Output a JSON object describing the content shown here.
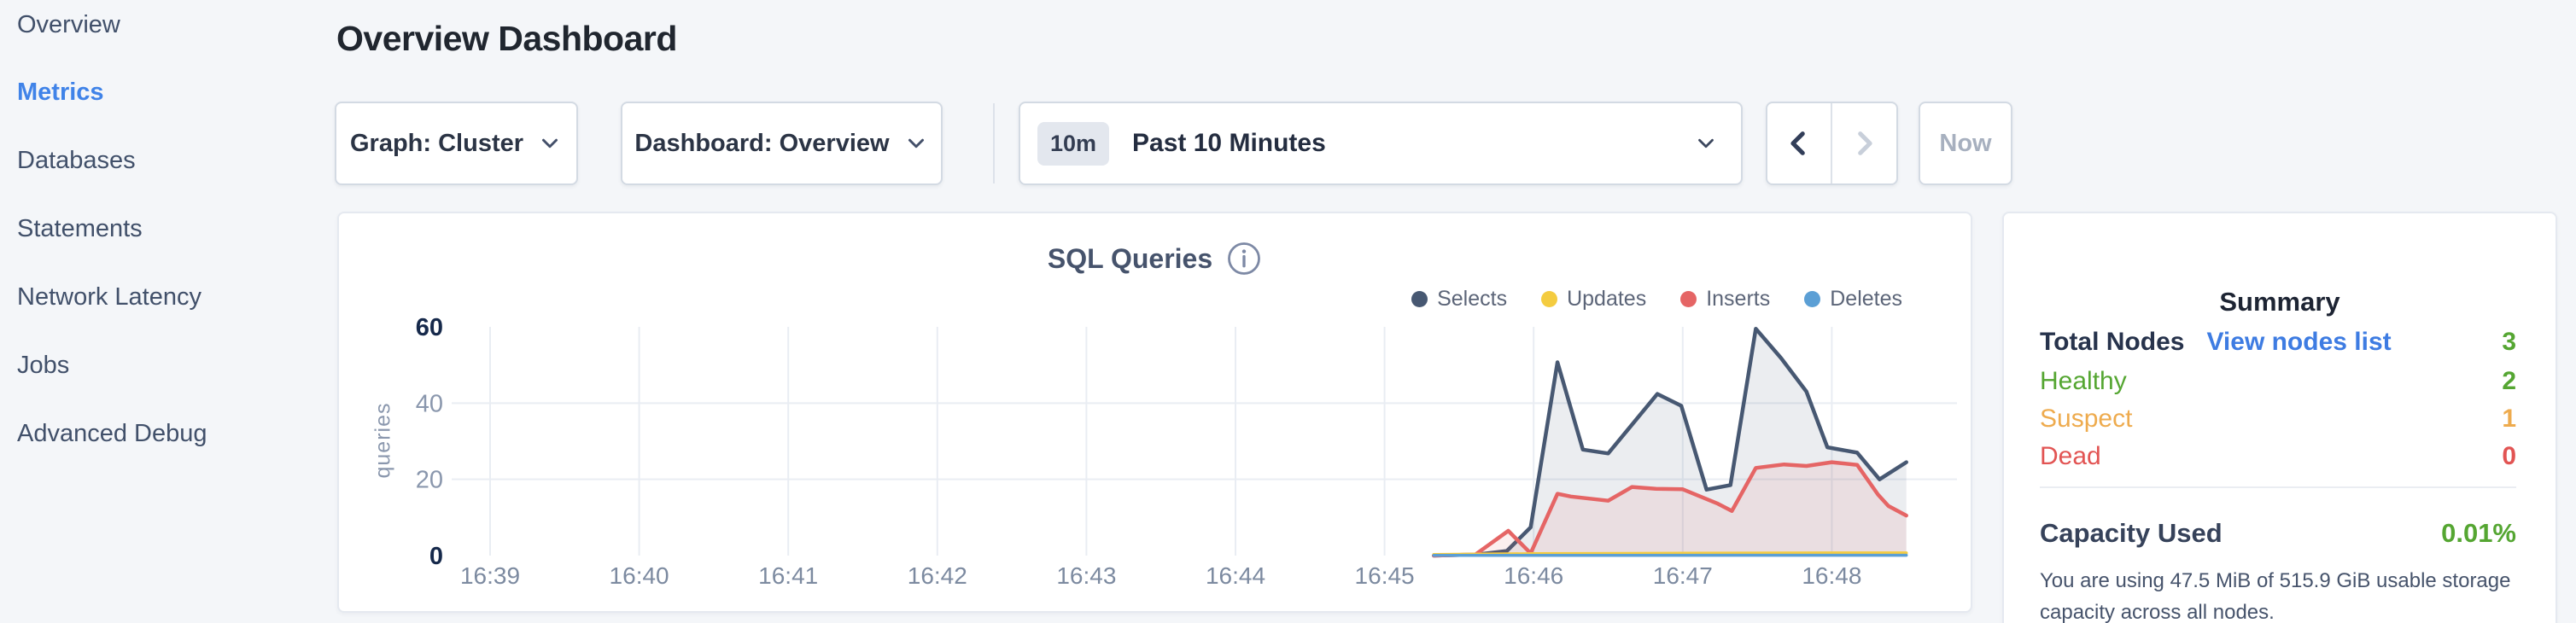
{
  "sidebar": {
    "items": [
      {
        "label": "Overview"
      },
      {
        "label": "Metrics"
      },
      {
        "label": "Databases"
      },
      {
        "label": "Statements"
      },
      {
        "label": "Network Latency"
      },
      {
        "label": "Jobs"
      },
      {
        "label": "Advanced Debug"
      }
    ],
    "active_index": 1,
    "active_color": "#4083e8"
  },
  "header": {
    "title": "Overview Dashboard"
  },
  "toolbar": {
    "graph_dropdown": {
      "label": "Graph: Cluster"
    },
    "dashboard_dropdown": {
      "label": "Dashboard: Overview"
    },
    "time_picker": {
      "badge": "10m",
      "label": "Past 10 Minutes"
    },
    "now_label": "Now"
  },
  "chart_data": {
    "type": "area",
    "title": "SQL Queries",
    "ylabel": "queries",
    "xlabel": "",
    "x_ticks": [
      "16:39",
      "16:40",
      "16:41",
      "16:42",
      "16:43",
      "16:44",
      "16:45",
      "16:46",
      "16:47",
      "16:48"
    ],
    "y_ticks": [
      0,
      20,
      40,
      60
    ],
    "y_gridlines": [
      20,
      40
    ],
    "ylim": [
      0,
      60
    ],
    "x_range_minutes": [
      0,
      9.85
    ],
    "grid": true,
    "legend_position": "top-right",
    "series": [
      {
        "name": "Selects",
        "color": "#475872",
        "fill": "rgba(71,88,114,0.11)",
        "width": 4.5,
        "points": [
          [
            6.33,
            0
          ],
          [
            6.62,
            0.3
          ],
          [
            6.82,
            1.2
          ],
          [
            6.98,
            7.4
          ],
          [
            7.16,
            50.7
          ],
          [
            7.33,
            27.8
          ],
          [
            7.5,
            26.8
          ],
          [
            7.83,
            42.4
          ],
          [
            7.99,
            39.3
          ],
          [
            8.16,
            17.3
          ],
          [
            8.32,
            18.5
          ],
          [
            8.49,
            59.5
          ],
          [
            8.66,
            51.8
          ],
          [
            8.83,
            43
          ],
          [
            8.97,
            28.4
          ],
          [
            9.17,
            27
          ],
          [
            9.32,
            20
          ],
          [
            9.5,
            24.5
          ]
        ]
      },
      {
        "name": "Updates",
        "color": "#f4cc40",
        "width": 3.5,
        "points": [
          [
            6.33,
            0.3
          ],
          [
            7.0,
            0.5
          ],
          [
            8.0,
            0.6
          ],
          [
            9.0,
            0.7
          ],
          [
            9.5,
            0.7
          ]
        ]
      },
      {
        "name": "Inserts",
        "color": "#e56565",
        "fill": "rgba(229,101,101,0.10)",
        "width": 4.5,
        "points": [
          [
            6.33,
            0
          ],
          [
            6.61,
            0.3
          ],
          [
            6.83,
            6.5
          ],
          [
            6.98,
            0.6
          ],
          [
            7.16,
            16.2
          ],
          [
            7.25,
            15.5
          ],
          [
            7.5,
            14.4
          ],
          [
            7.66,
            18
          ],
          [
            7.82,
            17.5
          ],
          [
            8.0,
            17.4
          ],
          [
            8.23,
            13.7
          ],
          [
            8.33,
            11.7
          ],
          [
            8.49,
            23
          ],
          [
            8.68,
            23.9
          ],
          [
            8.83,
            23.5
          ],
          [
            9.0,
            24.5
          ],
          [
            9.17,
            23.8
          ],
          [
            9.31,
            16
          ],
          [
            9.38,
            13
          ],
          [
            9.5,
            10.5
          ]
        ]
      },
      {
        "name": "Deletes",
        "color": "#5b9fd5",
        "width": 3.5,
        "points": [
          [
            6.33,
            0.05
          ],
          [
            9.5,
            0.1
          ]
        ]
      }
    ],
    "axis_colors": {
      "minmax_label": "#16294b",
      "mid_label": "#8a97ad",
      "x_label": "#7c8aa0",
      "gridline": "#e9edf3"
    }
  },
  "summary": {
    "title": "Summary",
    "total_nodes_label": "Total Nodes",
    "view_nodes_link": "View nodes list",
    "total_nodes_value": "3",
    "total_nodes_color": "#55a632",
    "link_color": "#3e7ce2",
    "rows": [
      {
        "label": "Healthy",
        "value": "2",
        "color": "#55a632"
      },
      {
        "label": "Suspect",
        "value": "1",
        "color": "#eeab4e"
      },
      {
        "label": "Dead",
        "value": "0",
        "color": "#e25453"
      }
    ],
    "capacity_label": "Capacity Used",
    "capacity_value": "0.01%",
    "capacity_value_color": "#55a632",
    "capacity_description": "You are using 47.5 MiB of 515.9 GiB usable storage capacity across all nodes.",
    "capacity_description_lines": [
      "You are using 47.5 MiB of 515.9 GiB usable storage",
      "capacity across all nodes."
    ]
  }
}
